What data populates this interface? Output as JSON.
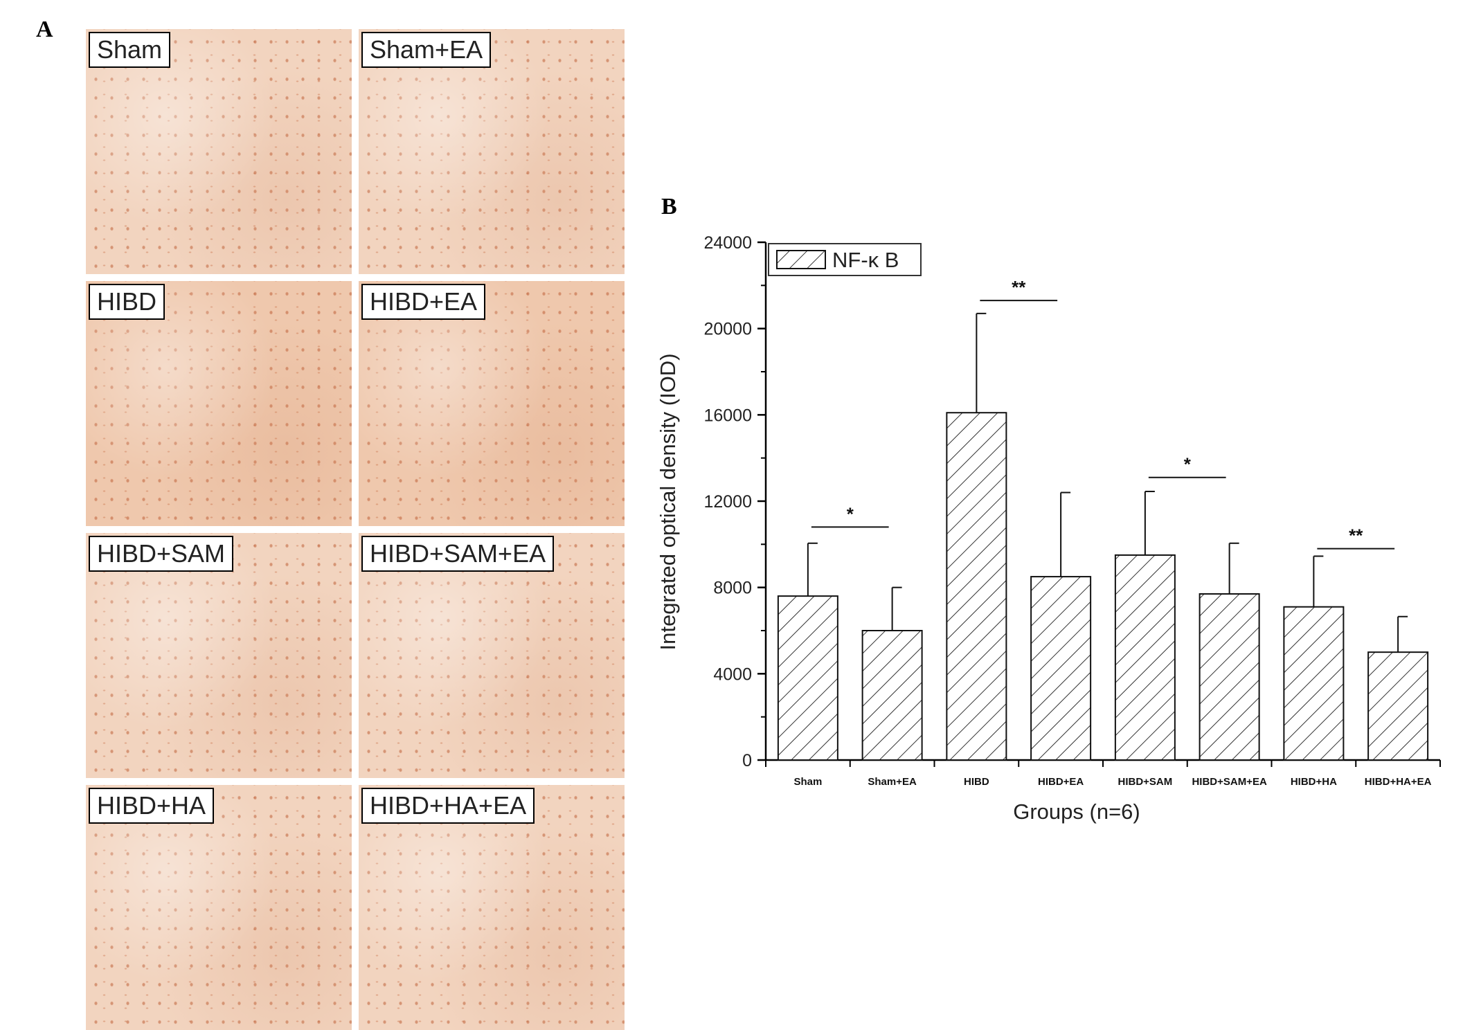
{
  "panel_a": {
    "letter": "A",
    "images": [
      {
        "label": "Sham"
      },
      {
        "label": "Sham+EA"
      },
      {
        "label": "HIBD"
      },
      {
        "label": "HIBD+EA"
      },
      {
        "label": "HIBD+SAM"
      },
      {
        "label": "HIBD+SAM+EA"
      },
      {
        "label": "HIBD+HA"
      },
      {
        "label": "HIBD+HA+EA"
      }
    ]
  },
  "panel_b": {
    "letter": "B"
  },
  "chart_data": {
    "type": "bar",
    "categories": [
      "Sham",
      "Sham+EA",
      "HIBD",
      "HIBD+EA",
      "HIBD+SAM",
      "HIBD+SAM+EA",
      "HIBD+HA",
      "HIBD+HA+EA"
    ],
    "series": [
      {
        "name": "NF-κ B",
        "values": [
          7600,
          6000,
          16100,
          8500,
          9500,
          7700,
          7100,
          5000
        ],
        "errors": [
          2450,
          2000,
          4600,
          3900,
          2950,
          2350,
          2350,
          1650
        ]
      }
    ],
    "xlabel": "Groups (n=6)",
    "ylabel": "Integrated optical density (IOD)",
    "ylim": [
      0,
      24000
    ],
    "yticks": [
      0,
      4000,
      8000,
      12000,
      16000,
      20000,
      24000
    ],
    "ytick_labels": [
      "0",
      "4000",
      "8000",
      "12000",
      "16000",
      "20000",
      "24000"
    ],
    "fill_pattern": "diagonal-hatch",
    "legend_position": "top-left",
    "grid": false,
    "significance": [
      {
        "from": 0,
        "to": 1,
        "y": 10800,
        "label": "*"
      },
      {
        "from": 2,
        "to": 3,
        "y": 21300,
        "label": "**"
      },
      {
        "from": 4,
        "to": 5,
        "y": 13100,
        "label": "*"
      },
      {
        "from": 6,
        "to": 7,
        "y": 9800,
        "label": "**"
      }
    ]
  }
}
